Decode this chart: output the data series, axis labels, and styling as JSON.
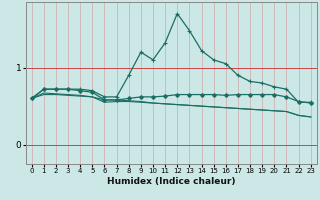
{
  "xlabel": "Humidex (Indice chaleur)",
  "background_color": "#cce8e6",
  "grid_color": "#afd4d2",
  "line_color": "#1a6e64",
  "x_ticks": [
    0,
    1,
    2,
    3,
    4,
    5,
    6,
    7,
    8,
    9,
    10,
    11,
    12,
    13,
    14,
    15,
    16,
    17,
    18,
    19,
    20,
    21,
    22,
    23
  ],
  "y_ticks": [
    0,
    1
  ],
  "ylim": [
    -0.25,
    1.85
  ],
  "xlim": [
    -0.5,
    23.5
  ],
  "series_peak": {
    "x": [
      0,
      1,
      2,
      3,
      4,
      5,
      6,
      7,
      8,
      9,
      10,
      11,
      12,
      13,
      14,
      15,
      16,
      17,
      18,
      19,
      20,
      21,
      22,
      23
    ],
    "y": [
      0.6,
      0.72,
      0.72,
      0.72,
      0.72,
      0.7,
      0.62,
      0.62,
      0.9,
      1.2,
      1.1,
      1.32,
      1.7,
      1.48,
      1.22,
      1.1,
      1.05,
      0.9,
      0.82,
      0.8,
      0.75,
      0.72,
      0.55,
      0.55
    ]
  },
  "series_flat": {
    "x": [
      0,
      1,
      2,
      3,
      4,
      5,
      6,
      7,
      8,
      9,
      10,
      11,
      12,
      13,
      14,
      15,
      16,
      17,
      18,
      19,
      20,
      21,
      22,
      23
    ],
    "y": [
      0.6,
      0.72,
      0.72,
      0.72,
      0.7,
      0.68,
      0.58,
      0.58,
      0.6,
      0.62,
      0.62,
      0.63,
      0.65,
      0.65,
      0.65,
      0.65,
      0.64,
      0.65,
      0.65,
      0.65,
      0.65,
      0.62,
      0.56,
      0.54
    ]
  },
  "series_decline1": {
    "x": [
      0,
      1,
      2,
      3,
      4,
      5,
      6,
      7,
      8,
      9,
      10,
      11,
      12,
      13,
      14,
      15,
      16,
      17,
      18,
      19,
      20,
      21,
      22,
      23
    ],
    "y": [
      0.6,
      0.65,
      0.65,
      0.64,
      0.63,
      0.62,
      0.58,
      0.58,
      0.57,
      0.56,
      0.54,
      0.53,
      0.52,
      0.51,
      0.5,
      0.49,
      0.48,
      0.47,
      0.46,
      0.45,
      0.44,
      0.43,
      0.38,
      0.36
    ]
  },
  "series_decline2": {
    "x": [
      0,
      1,
      2,
      3,
      4,
      5,
      6,
      7,
      8,
      9,
      10,
      11,
      12,
      13,
      14,
      15,
      16,
      17,
      18,
      19,
      20,
      21,
      22,
      23
    ],
    "y": [
      0.6,
      0.67,
      0.66,
      0.65,
      0.64,
      0.62,
      0.55,
      0.56,
      0.56,
      0.55,
      0.54,
      0.53,
      0.52,
      0.51,
      0.5,
      0.49,
      0.48,
      0.47,
      0.46,
      0.45,
      0.44,
      0.43,
      0.38,
      0.36
    ]
  },
  "red_line_color": "#cc4444",
  "spine_color": "#888888"
}
